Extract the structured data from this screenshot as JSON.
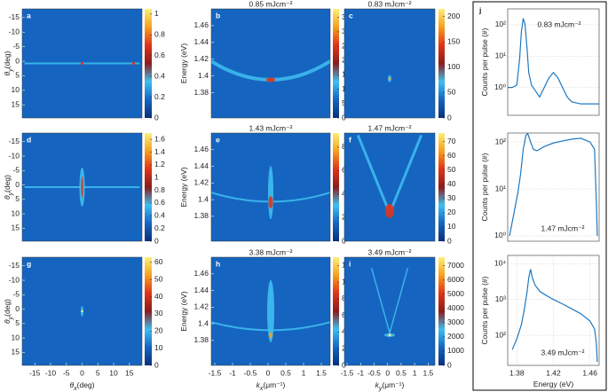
{
  "chart_data": [
    {
      "type": "heatmap",
      "panel": "a",
      "ylabel": [
        {
          "text": "θ",
          "italic": true
        },
        {
          "text": "y",
          "shift": "sub",
          "italic": true
        },
        {
          "text": "(deg)"
        }
      ],
      "ylim": [
        -18,
        19.5
      ],
      "yreverse": true,
      "yticks": [
        -15,
        -10,
        -5,
        0,
        5,
        10,
        15
      ],
      "clim": [
        0,
        1.05
      ],
      "cticks": [
        0,
        0.2,
        0.4,
        0.6,
        0.8,
        1
      ],
      "colormap": [
        "#0a2f7a",
        "#1565c0",
        "#3fbff0",
        "#8a1c1c",
        "#e0341a",
        "#f5a020",
        "#fbf07a"
      ]
    },
    {
      "type": "heatmap",
      "panel": "b",
      "title": "0.85 mJcm⁻²",
      "ylabel": [
        {
          "text": "Energy (eV)"
        }
      ],
      "ylim": [
        1.35,
        1.48
      ],
      "yticks": [
        1.38,
        1.4,
        1.42,
        1.44,
        1.46
      ],
      "clim": [
        0,
        38
      ],
      "cticks": [
        0,
        5,
        10,
        15,
        20,
        25,
        30,
        35
      ],
      "colormap": [
        "#0a2f7a",
        "#1565c0",
        "#3fbff0",
        "#8a1c1c",
        "#e0341a",
        "#f5a020",
        "#fbf07a"
      ]
    },
    {
      "type": "heatmap",
      "panel": "c",
      "title": "0.83 mJcm⁻²",
      "clim": [
        0,
        215
      ],
      "cticks": [
        0,
        50,
        100,
        150,
        200
      ],
      "colormap": [
        "#0a2f7a",
        "#1565c0",
        "#3fbff0",
        "#8a1c1c",
        "#e0341a",
        "#f5a020",
        "#fbf07a"
      ]
    },
    {
      "type": "heatmap",
      "panel": "d",
      "ylabel": [
        {
          "text": "θ",
          "italic": true
        },
        {
          "text": "y",
          "shift": "sub",
          "italic": true
        },
        {
          "text": "(deg)"
        }
      ],
      "ylim": [
        -18,
        19.5
      ],
      "yreverse": true,
      "yticks": [
        -15,
        -10,
        -5,
        0,
        5,
        10,
        15
      ],
      "clim": [
        0,
        1.7
      ],
      "cticks": [
        0,
        0.2,
        0.4,
        0.6,
        0.8,
        1,
        1.2,
        1.4,
        1.6
      ],
      "colormap": [
        "#0a2f7a",
        "#1565c0",
        "#3fbff0",
        "#8a1c1c",
        "#e0341a",
        "#f5a020",
        "#fbf07a"
      ]
    },
    {
      "type": "heatmap",
      "panel": "e",
      "title": "1.43 mJcm⁻²",
      "ylabel": [
        {
          "text": "Energy (eV)"
        }
      ],
      "ylim": [
        1.35,
        1.48
      ],
      "yticks": [
        1.38,
        1.4,
        1.42,
        1.44,
        1.46
      ],
      "clim": [
        0,
        92
      ],
      "cticks": [
        0,
        20,
        40,
        60,
        80
      ],
      "colormap": [
        "#0a2f7a",
        "#1565c0",
        "#3fbff0",
        "#8a1c1c",
        "#e0341a",
        "#f5a020",
        "#fbf07a"
      ]
    },
    {
      "type": "heatmap",
      "panel": "f",
      "title": "1.47 mJcm⁻²",
      "clim": [
        0,
        76
      ],
      "cticks": [
        0,
        10,
        20,
        30,
        40,
        50,
        60,
        70
      ],
      "colormap": [
        "#0a2f7a",
        "#1565c0",
        "#3fbff0",
        "#8a1c1c",
        "#e0341a",
        "#f5a020",
        "#fbf07a"
      ]
    },
    {
      "type": "heatmap",
      "panel": "g",
      "ylabel": [
        {
          "text": "θ",
          "italic": true
        },
        {
          "text": "y",
          "shift": "sub",
          "italic": true
        },
        {
          "text": "(deg)"
        }
      ],
      "ylim": [
        -18,
        19.5
      ],
      "yreverse": true,
      "yticks": [
        -15,
        -10,
        -5,
        0,
        5,
        10,
        15
      ],
      "xlabel": [
        {
          "text": "θ",
          "italic": true
        },
        {
          "text": "x",
          "shift": "sub",
          "italic": true
        },
        {
          "text": "(deg)"
        }
      ],
      "xlim": [
        -19,
        19
      ],
      "xticks": [
        -15,
        -10,
        -5,
        0,
        5,
        10,
        15
      ],
      "clim": [
        0,
        63
      ],
      "cticks": [
        0,
        10,
        20,
        30,
        40,
        50,
        60
      ],
      "colormap": [
        "#0a2f7a",
        "#1565c0",
        "#3fbff0",
        "#8a1c1c",
        "#e0341a",
        "#f5a020",
        "#fbf07a"
      ]
    },
    {
      "type": "heatmap",
      "panel": "h",
      "title": "3.38 mJcm⁻²",
      "ylabel": [
        {
          "text": "Energy (eV)"
        }
      ],
      "ylim": [
        1.35,
        1.48
      ],
      "yticks": [
        1.38,
        1.4,
        1.42,
        1.44,
        1.46
      ],
      "xlabel": [
        {
          "text": "k",
          "italic": true
        },
        {
          "text": "x",
          "shift": "sub",
          "italic": true
        },
        {
          "text": "(μm⁻¹)"
        }
      ],
      "xlim": [
        -1.6,
        1.75
      ],
      "xticks": [
        -1.5,
        -1,
        -0.5,
        0,
        0.5,
        1,
        1.5
      ],
      "clim": [
        0,
        1300
      ],
      "cticks": [
        0,
        200,
        400,
        600,
        800,
        1000,
        1200
      ],
      "colormap": [
        "#0a2f7a",
        "#1565c0",
        "#3fbff0",
        "#8a1c1c",
        "#e0341a",
        "#f5a020",
        "#fbf07a"
      ]
    },
    {
      "type": "heatmap",
      "panel": "i",
      "title": "3.49 mJcm⁻²",
      "xlabel": [
        {
          "text": "k",
          "italic": true
        },
        {
          "text": "y",
          "shift": "sub",
          "italic": true
        },
        {
          "text": "(μm⁻¹)"
        }
      ],
      "xlim": [
        -1.6,
        1.75
      ],
      "xticks": [
        -1.5,
        -1,
        -0.5,
        0,
        0.5,
        1,
        1.5
      ],
      "clim": [
        0,
        7600
      ],
      "cticks": [
        0,
        1000,
        2000,
        3000,
        4000,
        5000,
        6000,
        7000
      ],
      "colormap": [
        "#0a2f7a",
        "#1565c0",
        "#3fbff0",
        "#8a1c1c",
        "#e0341a",
        "#f5a020",
        "#fbf07a"
      ]
    },
    {
      "type": "line",
      "panel": "j",
      "ylabel": [
        {
          "text": "Counts per pulse (#)"
        }
      ],
      "ylog": true,
      "grid": true,
      "ylim": [
        0.13,
        320
      ],
      "yticks": [
        {
          "value": 1,
          "label": "10⁰"
        },
        {
          "value": 10,
          "label": "10¹"
        },
        {
          "value": 100,
          "label": "10²"
        }
      ],
      "xlim": [
        1.37,
        1.47
      ],
      "annotation": "0.83 mJcm⁻²",
      "color": "#1f78c1",
      "x": [
        1.37,
        1.375,
        1.38,
        1.383,
        1.385,
        1.387,
        1.389,
        1.391,
        1.393,
        1.396,
        1.4,
        1.405,
        1.41,
        1.415,
        1.42,
        1.425,
        1.43,
        1.435,
        1.44,
        1.45,
        1.46,
        1.47
      ],
      "values": [
        1,
        1,
        1.2,
        8,
        60,
        160,
        100,
        20,
        3,
        1.2,
        0.8,
        0.5,
        1,
        2,
        3,
        2,
        1,
        0.5,
        0.35,
        0.3,
        0.3,
        0.3
      ]
    },
    {
      "type": "line",
      "ylabel": [
        {
          "text": "Counts per pulse (#)"
        }
      ],
      "ylog": true,
      "grid": true,
      "ylim": [
        0.77,
        155
      ],
      "yticks": [
        {
          "value": 1,
          "label": "10⁰"
        },
        {
          "value": 10,
          "label": "10¹"
        },
        {
          "value": 100,
          "label": "10²"
        }
      ],
      "xlim": [
        1.37,
        1.47
      ],
      "annotation": "1.47 mJcm⁻²",
      "color": "#1f78c1",
      "x": [
        1.372,
        1.375,
        1.378,
        1.381,
        1.384,
        1.387,
        1.39,
        1.392,
        1.395,
        1.398,
        1.402,
        1.41,
        1.42,
        1.43,
        1.44,
        1.45,
        1.46,
        1.465,
        1.467,
        1.468
      ],
      "values": [
        1,
        2,
        4,
        8,
        20,
        70,
        140,
        150,
        100,
        70,
        65,
        80,
        95,
        105,
        115,
        120,
        100,
        70,
        5,
        1
      ]
    },
    {
      "type": "line",
      "ylabel": [
        {
          "text": "Counts per pulse (#)"
        }
      ],
      "ylog": true,
      "grid": true,
      "ylim": [
        14.5,
        17000
      ],
      "yticks": [
        {
          "value": 100,
          "label": "10²"
        },
        {
          "value": 1000,
          "label": "10³"
        },
        {
          "value": 10000,
          "label": "10⁴"
        }
      ],
      "xlim": [
        1.37,
        1.47
      ],
      "xticks": [
        1.38,
        1.42,
        1.46
      ],
      "xlabel": [
        {
          "text": "Energy (eV)"
        }
      ],
      "annotation": "3.49 mJcm⁻²",
      "color": "#1f78c1",
      "x": [
        1.375,
        1.38,
        1.385,
        1.388,
        1.391,
        1.393,
        1.395,
        1.397,
        1.4,
        1.405,
        1.41,
        1.42,
        1.43,
        1.44,
        1.45,
        1.46,
        1.465,
        1.467,
        1.468
      ],
      "values": [
        40,
        80,
        200,
        500,
        1500,
        4000,
        7000,
        4000,
        2500,
        1700,
        1400,
        1000,
        750,
        550,
        400,
        250,
        150,
        60,
        18
      ]
    }
  ]
}
